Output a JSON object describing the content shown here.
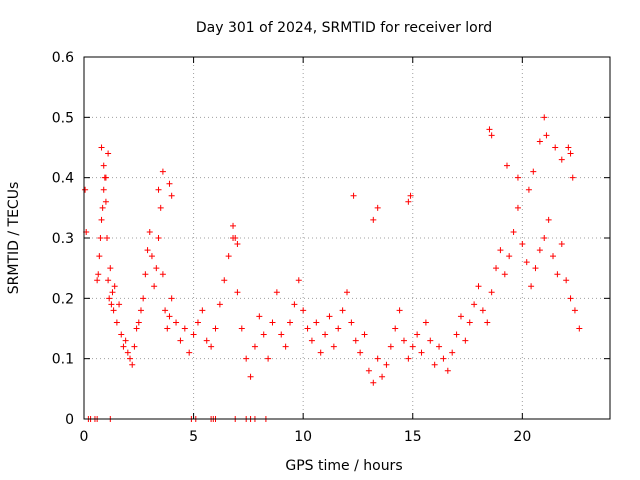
{
  "chart_data": {
    "type": "scatter",
    "title": "Day 301 of 2024, SRMTID for receiver lord",
    "xlabel": "GPS time / hours",
    "ylabel": "SRMTID / TECUs",
    "xlim": [
      0,
      24
    ],
    "ylim": [
      0,
      0.6
    ],
    "xticks": [
      0,
      5,
      10,
      15,
      20
    ],
    "xtick_labels": [
      "0",
      "5",
      "10",
      "15",
      "20"
    ],
    "yticks": [
      0,
      0.1,
      0.2,
      0.3,
      0.4,
      0.5,
      0.6
    ],
    "ytick_labels": [
      "0",
      "0.1",
      "0.2",
      "0.3",
      "0.4",
      "0.5",
      "0.6"
    ],
    "grid": true,
    "marker": "+",
    "color": "#ff0000",
    "series": [
      {
        "name": "SRMTID",
        "x": [
          0.05,
          0.1,
          0.3,
          0.5,
          0.6,
          0.65,
          0.7,
          0.75,
          0.8,
          0.85,
          0.9,
          0.95,
          1.0,
          1.05,
          1.1,
          1.15,
          1.2,
          1.25,
          1.3,
          1.35,
          1.4,
          1.5,
          1.6,
          1.7,
          1.8,
          1.9,
          2.0,
          2.1,
          2.2,
          2.3,
          2.4,
          2.5,
          2.6,
          2.7,
          2.8,
          2.9,
          3.0,
          3.1,
          3.2,
          3.3,
          3.4,
          3.5,
          3.6,
          3.7,
          3.8,
          3.9,
          4.0,
          4.2,
          4.4,
          4.6,
          4.8,
          5.0,
          5.2,
          5.4,
          5.6,
          5.8,
          6.0,
          6.2,
          6.4,
          6.6,
          6.8,
          7.0,
          7.2,
          7.4,
          7.6,
          7.8,
          8.0,
          8.2,
          8.4,
          8.6,
          8.8,
          9.0,
          9.2,
          9.4,
          9.6,
          9.8,
          10.0,
          10.2,
          10.4,
          10.6,
          10.8,
          11.0,
          11.2,
          11.4,
          11.6,
          11.8,
          12.0,
          12.2,
          12.4,
          12.6,
          12.8,
          13.0,
          13.2,
          13.4,
          13.6,
          13.8,
          14.0,
          14.2,
          14.4,
          14.6,
          14.8,
          15.0,
          15.2,
          15.4,
          15.6,
          15.8,
          16.0,
          16.2,
          16.4,
          16.6,
          16.8,
          17.0,
          17.2,
          17.4,
          17.6,
          17.8,
          18.0,
          18.2,
          18.4,
          18.6,
          18.8,
          19.0,
          19.2,
          19.4,
          19.6,
          19.8,
          20.0,
          20.2,
          20.4,
          20.6,
          20.8,
          21.0,
          21.2,
          21.4,
          21.6,
          21.8,
          22.0,
          22.2,
          22.4,
          22.6,
          0.8,
          0.9,
          1.0,
          1.1,
          3.4,
          3.6,
          3.9,
          4.0,
          6.8,
          6.9,
          7.0,
          12.3,
          13.2,
          13.4,
          14.8,
          14.9,
          18.5,
          18.6,
          19.3,
          19.8,
          20.3,
          20.5,
          20.8,
          21.0,
          21.1,
          21.5,
          21.8,
          22.1,
          22.2,
          22.3,
          0.2,
          0.6,
          1.2,
          4.9,
          5.1,
          5.8,
          5.9,
          6.0,
          6.9,
          7.4,
          7.6,
          7.8,
          8.3
        ],
        "y": [
          0.38,
          0.31,
          0.0,
          0.0,
          0.23,
          0.24,
          0.27,
          0.3,
          0.33,
          0.35,
          0.38,
          0.4,
          0.36,
          0.3,
          0.23,
          0.2,
          0.25,
          0.19,
          0.21,
          0.18,
          0.22,
          0.16,
          0.19,
          0.14,
          0.12,
          0.13,
          0.11,
          0.1,
          0.09,
          0.12,
          0.15,
          0.16,
          0.18,
          0.2,
          0.24,
          0.28,
          0.31,
          0.27,
          0.22,
          0.25,
          0.3,
          0.35,
          0.24,
          0.18,
          0.15,
          0.17,
          0.2,
          0.16,
          0.13,
          0.15,
          0.11,
          0.14,
          0.16,
          0.18,
          0.13,
          0.12,
          0.15,
          0.19,
          0.23,
          0.27,
          0.3,
          0.21,
          0.15,
          0.1,
          0.07,
          0.12,
          0.17,
          0.14,
          0.1,
          0.16,
          0.21,
          0.14,
          0.12,
          0.16,
          0.19,
          0.23,
          0.18,
          0.15,
          0.13,
          0.16,
          0.11,
          0.14,
          0.17,
          0.12,
          0.15,
          0.18,
          0.21,
          0.16,
          0.13,
          0.11,
          0.14,
          0.08,
          0.06,
          0.1,
          0.07,
          0.09,
          0.12,
          0.15,
          0.18,
          0.13,
          0.1,
          0.12,
          0.14,
          0.11,
          0.16,
          0.13,
          0.09,
          0.12,
          0.1,
          0.08,
          0.11,
          0.14,
          0.17,
          0.13,
          0.16,
          0.19,
          0.22,
          0.18,
          0.16,
          0.21,
          0.25,
          0.28,
          0.24,
          0.27,
          0.31,
          0.35,
          0.29,
          0.26,
          0.22,
          0.25,
          0.28,
          0.3,
          0.33,
          0.27,
          0.24,
          0.29,
          0.23,
          0.2,
          0.18,
          0.15,
          0.45,
          0.42,
          0.4,
          0.44,
          0.38,
          0.41,
          0.39,
          0.37,
          0.32,
          0.3,
          0.29,
          0.37,
          0.33,
          0.35,
          0.36,
          0.37,
          0.48,
          0.47,
          0.42,
          0.4,
          0.38,
          0.41,
          0.46,
          0.5,
          0.47,
          0.45,
          0.43,
          0.45,
          0.44,
          0.4,
          0.0,
          0.0,
          0.0,
          0.0,
          0.0,
          0.0,
          0.0,
          0.0,
          0.0,
          0.0,
          0.0,
          0.0,
          0.0
        ]
      }
    ]
  }
}
